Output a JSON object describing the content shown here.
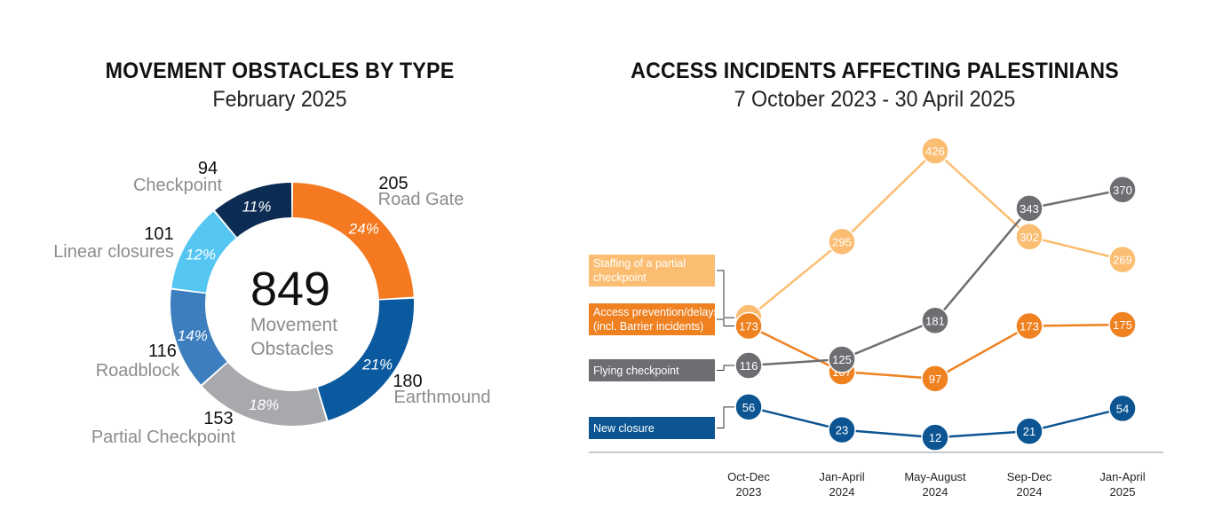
{
  "left": {
    "title": "MOVEMENT OBSTACLES BY TYPE",
    "subtitle": "February 2025",
    "center_value": "849",
    "center_label_1": "Movement",
    "center_label_2": "Obstacles"
  },
  "right": {
    "title": "ACCESS INCIDENTS AFFECTING PALESTINIANS",
    "subtitle": "7 October 2023 - 30 April 2025"
  },
  "chart_data": [
    {
      "type": "pie",
      "variant": "donut",
      "title": "MOVEMENT OBSTACLES BY TYPE",
      "subtitle": "February 2025",
      "total": 849,
      "slices": [
        {
          "label": "Road Gate",
          "value": 205,
          "percent": "24%",
          "color": "#f47920",
          "text_color": "#ffffff"
        },
        {
          "label": "Earthmound",
          "value": 180,
          "percent": "21%",
          "color": "#0b5aa0",
          "text_color": "#ffffff"
        },
        {
          "label": "Partial Checkpoint",
          "value": 153,
          "percent": "18%",
          "color": "#a7a9ac",
          "text_color": "#ffffff"
        },
        {
          "label": "Roadblock",
          "value": 116,
          "percent": "14%",
          "color": "#3d7ebf",
          "text_color": "#ffffff"
        },
        {
          "label": "Linear closures",
          "value": 101,
          "percent": "12%",
          "color": "#55c6f2",
          "text_color": "#ffffff"
        },
        {
          "label": "Checkpoint",
          "value": 94,
          "percent": "11%",
          "color": "#0d2c54",
          "text_color": "#ffffff"
        }
      ]
    },
    {
      "type": "line",
      "title": "ACCESS INCIDENTS AFFECTING PALESTINIANS",
      "subtitle": "7 October 2023 - 30 April 2025",
      "categories": [
        "Oct-Dec\n2023",
        "Jan-April\n2024",
        "May-August\n2024",
        "Sep-Dec\n2024",
        "Jan-April\n2025"
      ],
      "ylim": [
        0,
        440
      ],
      "grid": false,
      "legend": "left",
      "series": [
        {
          "name": "Staffing of a partial checkpoint",
          "color": "#fbbd71",
          "values": [
            185,
            295,
            426,
            302,
            269
          ]
        },
        {
          "name": "Access prevention/delays (incl. Barrier incidents)",
          "color": "#ef8121",
          "values": [
            173,
            107,
            97,
            173,
            175
          ]
        },
        {
          "name": "Flying checkpoint",
          "color": "#6d6e71",
          "values": [
            116,
            125,
            181,
            343,
            370
          ]
        },
        {
          "name": "New closure",
          "color": "#0c5592",
          "values": [
            56,
            23,
            12,
            21,
            54
          ]
        }
      ]
    }
  ]
}
